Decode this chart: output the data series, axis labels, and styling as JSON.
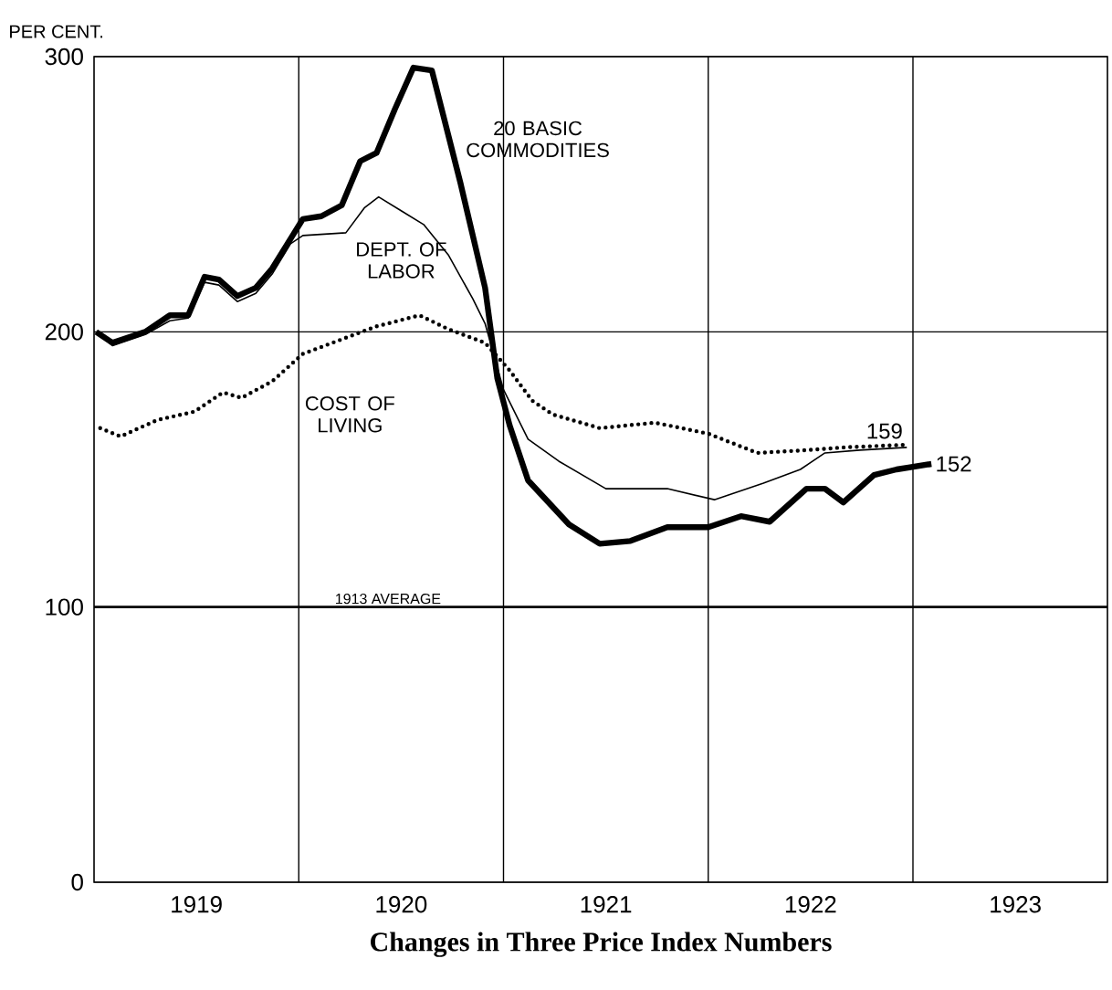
{
  "chart_data": {
    "type": "line",
    "title": "Changes in Three Price Index Numbers",
    "ylabel": "PER CENT.",
    "xlim": [
      1919,
      1923.95
    ],
    "ylim": [
      0,
      300
    ],
    "xticks": [
      {
        "value": 1919.5,
        "label": "1919"
      },
      {
        "value": 1920.5,
        "label": "1920"
      },
      {
        "value": 1921.5,
        "label": "1921"
      },
      {
        "value": 1922.5,
        "label": "1922"
      },
      {
        "value": 1923.5,
        "label": "1923"
      }
    ],
    "yticks": [
      0,
      100,
      200,
      300
    ],
    "grid": "y",
    "ref_lines": [
      {
        "axis": "y",
        "value": 100,
        "label": "1913 AVERAGE",
        "color": "#000000"
      },
      {
        "axis": "x",
        "value": 1920,
        "label": null,
        "color": "#000000"
      },
      {
        "axis": "x",
        "value": 1921,
        "label": null,
        "color": "#000000"
      },
      {
        "axis": "x",
        "value": 1922,
        "label": null,
        "color": "#000000"
      },
      {
        "axis": "x",
        "value": 1923,
        "label": null,
        "color": "#000000"
      }
    ],
    "series": [
      {
        "name": "20 BASIC COMMODITIES",
        "color": "#000000",
        "line_style": "solid",
        "x": [
          1919.01,
          1919.09,
          1919.25,
          1919.37,
          1919.46,
          1919.54,
          1919.61,
          1919.7,
          1919.79,
          1919.87,
          1920.02,
          1920.11,
          1920.21,
          1920.3,
          1920.38,
          1920.47,
          1920.56,
          1920.65,
          1920.79,
          1920.91,
          1920.97,
          1921.03,
          1921.12,
          1921.32,
          1921.47,
          1921.62,
          1921.8,
          1922.0,
          1922.16,
          1922.3,
          1922.48,
          1922.57,
          1922.66,
          1922.81,
          1922.92,
          1923.09
        ],
        "values": [
          200,
          196,
          200,
          206,
          206,
          220,
          219,
          213,
          216,
          223,
          241,
          242,
          246,
          262,
          265,
          281,
          296,
          295,
          254,
          216,
          183,
          166,
          146,
          130,
          123,
          124,
          129,
          129,
          133,
          131,
          143,
          143,
          138,
          148,
          150,
          152
        ],
        "value_labels": [
          null,
          null,
          null,
          null,
          null,
          null,
          null,
          null,
          null,
          null,
          null,
          null,
          null,
          null,
          null,
          null,
          null,
          null,
          null,
          null,
          null,
          null,
          null,
          null,
          null,
          null,
          null,
          null,
          null,
          null,
          null,
          null,
          null,
          null,
          null,
          "152"
        ]
      },
      {
        "name": "DEPT. OF LABOR",
        "color": "#000000",
        "line_style": "solid",
        "x": [
          1919.01,
          1919.09,
          1919.25,
          1919.37,
          1919.46,
          1919.54,
          1919.61,
          1919.7,
          1919.79,
          1919.87,
          1919.96,
          1920.02,
          1920.23,
          1920.32,
          1920.39,
          1920.5,
          1920.61,
          1920.73,
          1920.85,
          1920.91,
          1921.0,
          1921.12,
          1921.27,
          1921.5,
          1921.8,
          1922.03,
          1922.27,
          1922.45,
          1922.57,
          1922.74,
          1922.97
        ],
        "values": [
          200,
          195,
          199,
          204,
          205,
          218,
          217,
          211,
          214,
          221,
          232,
          235,
          236,
          245,
          249,
          244,
          239,
          228,
          212,
          203,
          179,
          161,
          153,
          143,
          143,
          139,
          145,
          150,
          156,
          157,
          158
        ]
      },
      {
        "name": "COST OF LIVING",
        "color": "#000000",
        "line_style": "dotted",
        "x": [
          1919.03,
          1919.13,
          1919.31,
          1919.49,
          1919.63,
          1919.72,
          1919.87,
          1920.02,
          1920.2,
          1920.38,
          1920.59,
          1920.73,
          1920.91,
          1921.03,
          1921.14,
          1921.24,
          1921.47,
          1921.74,
          1922.0,
          1922.24,
          1922.48,
          1922.66,
          1922.97
        ],
        "values": [
          165,
          162,
          168,
          171,
          178,
          176,
          182,
          192,
          197,
          202,
          206,
          201,
          196,
          186,
          175,
          170,
          165,
          167,
          163,
          156,
          157,
          158,
          159
        ],
        "value_labels": [
          null,
          null,
          null,
          null,
          null,
          null,
          null,
          null,
          null,
          null,
          null,
          null,
          null,
          null,
          null,
          null,
          null,
          null,
          null,
          null,
          null,
          null,
          "159"
        ]
      }
    ]
  }
}
